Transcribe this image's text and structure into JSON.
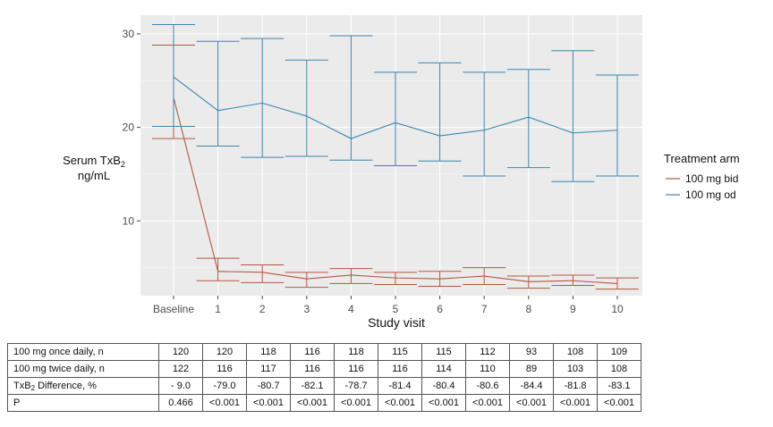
{
  "chart_data": {
    "type": "line",
    "ylabel_line1": "Serum TxB",
    "ylabel_sub": "2",
    "ylabel_line2": "ng/mL",
    "xlabel": "Study visit",
    "categories": [
      "Baseline",
      "1",
      "2",
      "3",
      "4",
      "5",
      "6",
      "7",
      "8",
      "9",
      "10"
    ],
    "ylim": [
      2,
      32
    ],
    "yticks": [
      10,
      20,
      30
    ],
    "grid": true,
    "legend": {
      "title": "Treatment arm",
      "position": "right"
    },
    "series": [
      {
        "name": "100 mg bid",
        "color": "#b5573f",
        "values": [
          23.2,
          4.6,
          4.5,
          3.8,
          4.2,
          3.9,
          3.8,
          4.1,
          3.5,
          3.6,
          3.3
        ],
        "lower": [
          18.8,
          3.6,
          3.4,
          2.9,
          3.3,
          3.2,
          3.0,
          3.2,
          2.8,
          3.1,
          2.7
        ],
        "upper": [
          28.8,
          6.0,
          5.3,
          4.5,
          4.9,
          4.5,
          4.6,
          5.0,
          4.1,
          4.2,
          3.9
        ]
      },
      {
        "name": "100 mg od",
        "color": "#3a85b0",
        "values": [
          25.4,
          21.8,
          22.6,
          21.2,
          18.8,
          20.5,
          19.1,
          19.7,
          21.1,
          19.4,
          19.7
        ],
        "lower": [
          20.1,
          18.0,
          16.8,
          16.9,
          16.5,
          15.9,
          16.4,
          14.8,
          15.7,
          14.2,
          14.8
        ],
        "upper": [
          31.0,
          29.2,
          29.5,
          27.2,
          29.8,
          25.9,
          26.9,
          25.9,
          26.2,
          28.2,
          25.6
        ]
      }
    ]
  },
  "table": {
    "rows": [
      {
        "label": "100 mg once daily, n",
        "values": [
          "120",
          "120",
          "118",
          "116",
          "118",
          "115",
          "115",
          "112",
          "93",
          "108",
          "109"
        ]
      },
      {
        "label": "100 mg twice daily, n",
        "values": [
          "122",
          "116",
          "117",
          "116",
          "116",
          "116",
          "114",
          "110",
          "89",
          "103",
          "108"
        ]
      },
      {
        "label": "TxB",
        "label_sub": "2",
        "label_suffix": " Difference, %",
        "values": [
          "- 9.0",
          "-79.0",
          "-80.7",
          "-82.1",
          "-78.7",
          "-81.4",
          "-80.4",
          "-80.6",
          "-84.4",
          "-81.8",
          "-83.1"
        ]
      },
      {
        "label": "P",
        "values": [
          "0.466",
          "<0.001",
          "<0.001",
          "<0.001",
          "<0.001",
          "<0.001",
          "<0.001",
          "<0.001",
          "<0.001",
          "<0.001",
          "<0.001"
        ]
      }
    ]
  }
}
